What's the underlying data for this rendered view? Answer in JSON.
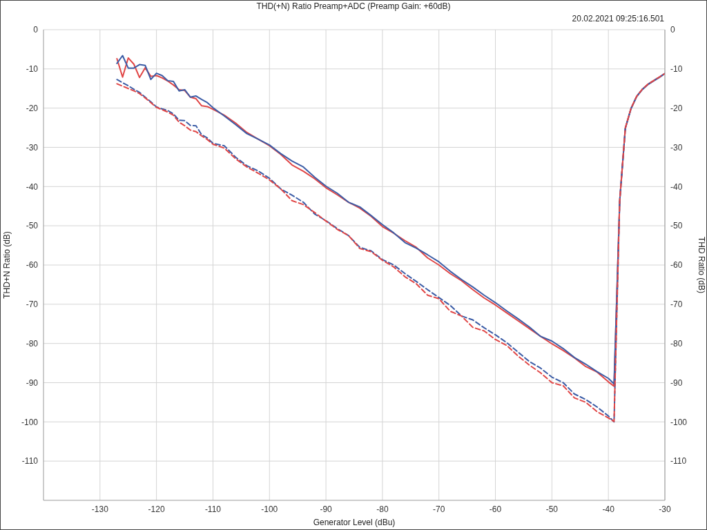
{
  "chart_data": {
    "type": "line",
    "title": "THD(+N) Ratio Preamp+ADC (Preamp Gain: +60dB)",
    "xlabel": "Generator Level (dBu)",
    "ylabel": "THD+N Ratio (dB)",
    "y2label": "THD Ratio (dB)",
    "annotations": [
      "20.02.2021 09:25:16.501"
    ],
    "x": [
      -127,
      -126,
      -125,
      -124,
      -123,
      -122,
      -121,
      -120,
      -119,
      -118,
      -117,
      -116,
      -115,
      -114,
      -113,
      -112,
      -111,
      -110,
      -108,
      -106,
      -104,
      -102,
      -100,
      -98,
      -96,
      -94,
      -92,
      -90,
      -88,
      -86,
      -84,
      -82,
      -80,
      -78,
      -76,
      -74,
      -72,
      -70,
      -68,
      -66,
      -64,
      -62,
      -60,
      -58,
      -56,
      -54,
      -52,
      -50,
      -48,
      -46,
      -44,
      -42,
      -40,
      -39,
      -38,
      -37,
      -36,
      -35,
      -34,
      -33,
      -32,
      -31,
      -30
    ],
    "series": [
      {
        "color": "#e04545",
        "line_style": "solid",
        "values": [
          -7.4,
          -12.1,
          -7.2,
          -8.8,
          -12.2,
          -9.7,
          -11.9,
          -11.7,
          -12.3,
          -13.1,
          -14.1,
          -15.3,
          -15.5,
          -17.2,
          -17.6,
          -19.4,
          -19.6,
          -20.3,
          -21.8,
          -23.8,
          -26.2,
          -27.9,
          -29.6,
          -31.8,
          -34.5,
          -36.1,
          -38.0,
          -40.3,
          -42.1,
          -44.0,
          -45.5,
          -47.6,
          -50.2,
          -51.9,
          -53.8,
          -55.5,
          -58.2,
          -60.0,
          -62.2,
          -64.0,
          -66.3,
          -68.4,
          -70.2,
          -72.2,
          -74.2,
          -76.2,
          -78.2,
          -80.1,
          -81.8,
          -83.7,
          -85.9,
          -87.3,
          -89.8,
          -90.9,
          -43.7,
          -25.0,
          -20.1,
          -17.0,
          -15.2,
          -13.9,
          -13.0,
          -12.1,
          -11.2
        ]
      },
      {
        "color": "#3b5ca6",
        "line_style": "solid",
        "values": [
          -8.6,
          -6.6,
          -9.8,
          -9.8,
          -8.9,
          -9.1,
          -12.7,
          -11.1,
          -11.7,
          -13.0,
          -13.2,
          -15.6,
          -15.3,
          -17.2,
          -16.9,
          -17.8,
          -18.6,
          -19.9,
          -22.0,
          -24.2,
          -26.5,
          -27.9,
          -29.4,
          -31.6,
          -33.5,
          -35.0,
          -37.6,
          -39.9,
          -41.7,
          -44.0,
          -45.2,
          -47.4,
          -49.7,
          -51.8,
          -54.3,
          -55.7,
          -57.4,
          -59.2,
          -61.6,
          -63.7,
          -65.6,
          -67.7,
          -69.6,
          -71.7,
          -73.7,
          -75.8,
          -78.2,
          -79.4,
          -81.3,
          -83.6,
          -85.3,
          -87.2,
          -88.9,
          -90.3,
          -43.7,
          -25.2,
          -20.2,
          -17.1,
          -15.3,
          -14.0,
          -13.1,
          -12.2,
          -11.2
        ]
      },
      {
        "color": "#3b5ca6",
        "line_style": "dashed",
        "values": [
          -12.7,
          -13.5,
          -14.3,
          -15.2,
          -16.0,
          -17.2,
          -18.4,
          -19.7,
          -20.2,
          -20.6,
          -21.5,
          -23.1,
          -23.2,
          -24.4,
          -24.5,
          -26.8,
          -27.6,
          -29.0,
          -29.6,
          -32.5,
          -34.7,
          -36.0,
          -37.9,
          -40.6,
          -42.2,
          -44.0,
          -47.0,
          -48.7,
          -50.7,
          -52.5,
          -55.5,
          -56.4,
          -58.6,
          -60.0,
          -62.2,
          -64.2,
          -66.3,
          -68.3,
          -70.3,
          -73.0,
          -74.0,
          -76.0,
          -77.8,
          -79.8,
          -82.2,
          -84.6,
          -86.3,
          -88.6,
          -90.0,
          -92.9,
          -94.3,
          -96.2,
          -98.5,
          -100.0,
          -43.7,
          -25.1,
          -20.1,
          -17.0,
          -15.2,
          -13.9,
          -13.0,
          -12.1,
          -11.2
        ]
      },
      {
        "color": "#e04545",
        "line_style": "dashed",
        "values": [
          -13.8,
          -14.4,
          -15.0,
          -15.6,
          -16.3,
          -17.4,
          -18.6,
          -19.8,
          -20.4,
          -21.0,
          -21.8,
          -23.6,
          -24.5,
          -25.6,
          -26.0,
          -27.1,
          -28.0,
          -29.2,
          -30.2,
          -32.9,
          -35.0,
          -36.6,
          -38.3,
          -40.6,
          -43.6,
          -44.6,
          -46.6,
          -48.8,
          -50.9,
          -52.5,
          -55.8,
          -56.6,
          -58.8,
          -60.5,
          -63.0,
          -64.8,
          -67.7,
          -68.6,
          -71.8,
          -73.0,
          -75.9,
          -76.8,
          -79.0,
          -80.5,
          -83.2,
          -85.5,
          -87.5,
          -90.0,
          -90.8,
          -93.9,
          -95.0,
          -97.4,
          -99.0,
          -99.9,
          -43.7,
          -25.1,
          -20.1,
          -17.0,
          -15.2,
          -13.9,
          -13.0,
          -12.1,
          -11.2
        ]
      }
    ],
    "xlim": [
      -140,
      -30
    ],
    "xticks": [
      -130,
      -120,
      -110,
      -100,
      -90,
      -80,
      -70,
      -60,
      -50,
      -40,
      -30
    ],
    "ylim": [
      -120,
      0
    ],
    "yticks": [
      0,
      -10,
      -20,
      -30,
      -40,
      -50,
      -60,
      -70,
      -80,
      -90,
      -100,
      -110
    ],
    "y2lim": [
      -120,
      0
    ],
    "y2ticks": [
      0,
      -10,
      -20,
      -30,
      -40,
      -50,
      -60,
      -70,
      -80,
      -90,
      -100,
      -110
    ],
    "grid": true
  }
}
